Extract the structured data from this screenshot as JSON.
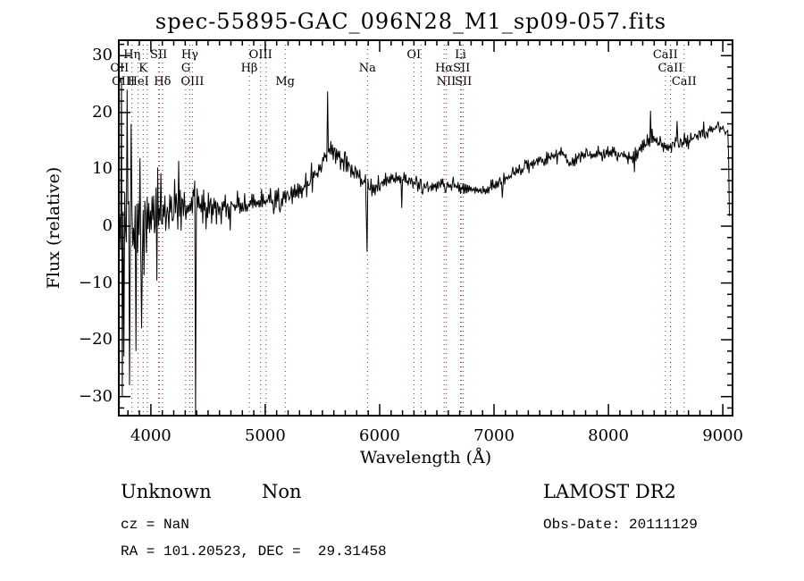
{
  "title": "spec-55895-GAC_096N28_M1_sp09-057.fits",
  "footer": {
    "class_label": "Unknown",
    "subclass_label": "Non",
    "survey": "LAMOST DR2",
    "cz": "cz = NaN",
    "obs_date": "Obs-Date: 20111129",
    "coords": "RA = 101.20523, DEC =  29.31458"
  },
  "chart_data": {
    "type": "line",
    "title": "spec-55895-GAC_096N28_M1_sp09-057.fits",
    "xlabel": "Wavelength (Å)",
    "ylabel": "Flux (relative)",
    "xlim": [
      3720,
      9085
    ],
    "ylim": [
      -33.35,
      32.72
    ],
    "x_ticks": [
      4000,
      5000,
      6000,
      7000,
      8000,
      9000
    ],
    "x_minor_step": 100,
    "y_ticks": [
      -30,
      -20,
      -10,
      0,
      10,
      20,
      30
    ],
    "y_minor_step": 2,
    "grid": false,
    "trace_color": "#000000",
    "ref_line_color": "#8b3030",
    "background": "#ffffff",
    "spectral_lines": [
      {
        "label": "Hη",
        "row": 1,
        "wl": 3835
      },
      {
        "label": "SII",
        "row": 1,
        "wl": 4068
      },
      {
        "label": "Hγ",
        "row": 1,
        "wl": 4340
      },
      {
        "label": "OIII",
        "row": 1,
        "wl": 4959
      },
      {
        "label": "OI",
        "row": 1,
        "wl": 6300
      },
      {
        "label": "Li",
        "row": 1,
        "wl": 6708
      },
      {
        "label": "CaII",
        "row": 1,
        "wl": 8498
      },
      {
        "label": "OII",
        "row": 2,
        "wl": 3727
      },
      {
        "label": "K",
        "row": 2,
        "wl": 3933
      },
      {
        "label": "G",
        "row": 2,
        "wl": 4305
      },
      {
        "label": "Hβ",
        "row": 2,
        "wl": 4861
      },
      {
        "label": "Na",
        "row": 2,
        "wl": 5893
      },
      {
        "label": "Hα",
        "row": 2,
        "wl": 6563
      },
      {
        "label": "SII",
        "row": 2,
        "wl": 6716
      },
      {
        "label": "CaII",
        "row": 2,
        "wl": 8542
      },
      {
        "label": "OIII",
        "row": 3,
        "wl": 3760
      },
      {
        "label": "HeI",
        "row": 3,
        "wl": 3889
      },
      {
        "label": "Hδ",
        "row": 3,
        "wl": 4101
      },
      {
        "label": "OIII",
        "row": 3,
        "wl": 4363
      },
      {
        "label": "Mg",
        "row": 3,
        "wl": 5175
      },
      {
        "label": "NII",
        "row": 3,
        "wl": 6583
      },
      {
        "label": "SII",
        "row": 3,
        "wl": 6731
      },
      {
        "label": "CaII",
        "row": 3,
        "wl": 8662
      }
    ],
    "ref_lines": [
      3727,
      3835,
      3889,
      3933,
      3968,
      4068,
      4076,
      4101,
      4305,
      4340,
      4363,
      4861,
      4959,
      5007,
      5175,
      5893,
      6300,
      6364,
      6563,
      6583,
      6708,
      6716,
      6731,
      8498,
      8542,
      8662
    ],
    "continuum": [
      [
        3722,
        0
      ],
      [
        3850,
        -1
      ],
      [
        3950,
        0.5
      ],
      [
        4050,
        2
      ],
      [
        4200,
        3
      ],
      [
        4350,
        3.5
      ],
      [
        4500,
        3
      ],
      [
        4700,
        3.5
      ],
      [
        4900,
        4
      ],
      [
        5100,
        4.5
      ],
      [
        5300,
        6
      ],
      [
        5450,
        9
      ],
      [
        5560,
        13.5
      ],
      [
        5640,
        12.5
      ],
      [
        5750,
        10
      ],
      [
        5860,
        8
      ],
      [
        5920,
        6.5
      ],
      [
        6100,
        8.5
      ],
      [
        6250,
        8
      ],
      [
        6420,
        7
      ],
      [
        6550,
        7.5
      ],
      [
        6700,
        6.8
      ],
      [
        6900,
        6.2
      ],
      [
        7000,
        7
      ],
      [
        7200,
        9.5
      ],
      [
        7400,
        11.5
      ],
      [
        7600,
        13
      ],
      [
        7660,
        10.8
      ],
      [
        7750,
        12.5
      ],
      [
        8000,
        13
      ],
      [
        8200,
        12
      ],
      [
        8350,
        15.5
      ],
      [
        8500,
        14
      ],
      [
        8600,
        14.5
      ],
      [
        8700,
        15
      ],
      [
        8850,
        16.5
      ],
      [
        8950,
        17.5
      ],
      [
        9020,
        17
      ],
      [
        9048,
        16.5
      ],
      [
        9058,
        2
      ]
    ],
    "noise_amp": [
      [
        3722,
        25
      ],
      [
        3800,
        22
      ],
      [
        3900,
        15
      ],
      [
        4000,
        10
      ],
      [
        4150,
        7
      ],
      [
        4300,
        5
      ],
      [
        4500,
        4
      ],
      [
        4800,
        3
      ],
      [
        5200,
        2.5
      ],
      [
        5500,
        2.8
      ],
      [
        5700,
        2.2
      ],
      [
        6000,
        1.7
      ],
      [
        6500,
        1.6
      ],
      [
        7000,
        1.5
      ],
      [
        7500,
        1.7
      ],
      [
        8000,
        1.8
      ],
      [
        8600,
        1.9
      ],
      [
        9000,
        1.2
      ],
      [
        9058,
        1
      ]
    ],
    "features": [
      [
        3745,
        26
      ],
      [
        3752,
        -30
      ],
      [
        3790,
        24
      ],
      [
        3810,
        -28
      ],
      [
        3830,
        18
      ],
      [
        3868,
        -22
      ],
      [
        3905,
        12
      ],
      [
        3920,
        -18
      ],
      [
        4240,
        11.5
      ],
      [
        4386,
        8
      ],
      [
        4392,
        -33.4
      ],
      [
        4398,
        2
      ],
      [
        5545,
        23.7
      ],
      [
        5884,
        2
      ],
      [
        5890,
        -4.5
      ],
      [
        6190,
        3.2
      ],
      [
        7070,
        5
      ],
      [
        8230,
        9.5
      ],
      [
        8370,
        20.3
      ],
      [
        8600,
        18.5
      ],
      [
        9058,
        1.8
      ]
    ],
    "seed": 20111129
  }
}
